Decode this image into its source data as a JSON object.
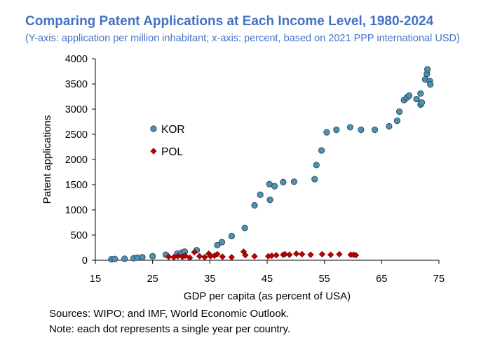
{
  "chart_data": {
    "type": "scatter",
    "title": "Comparing Patent Applications at Each Income Level, 1980-2024",
    "subtitle": "(Y-axis: application per million inhabitant; x-axis: percent, based on 2021 PPP international USD)",
    "xlabel": "GDP per capita (as percent of USA)",
    "ylabel": "Patent applications",
    "xlim": [
      15,
      75
    ],
    "ylim": [
      0,
      4000
    ],
    "xticks": [
      15,
      25,
      35,
      45,
      55,
      65,
      75
    ],
    "yticks": [
      0,
      500,
      1000,
      1500,
      2000,
      2500,
      3000,
      3500,
      4000
    ],
    "legend_position": "left",
    "series": [
      {
        "name": "KOR",
        "marker": "circle",
        "color": "#4f8fb0",
        "points": [
          [
            17.8,
            20
          ],
          [
            18.4,
            25
          ],
          [
            20.1,
            30
          ],
          [
            21.7,
            40
          ],
          [
            22.3,
            50
          ],
          [
            23.2,
            60
          ],
          [
            25,
            80
          ],
          [
            27.3,
            110
          ],
          [
            29.3,
            130
          ],
          [
            30.1,
            150
          ],
          [
            30.6,
            170
          ],
          [
            32.7,
            200
          ],
          [
            36.3,
            300
          ],
          [
            37.1,
            360
          ],
          [
            38.8,
            480
          ],
          [
            41.1,
            640
          ],
          [
            42.8,
            1090
          ],
          [
            43.8,
            1300
          ],
          [
            45.5,
            1200
          ],
          [
            45.4,
            1510
          ],
          [
            46.3,
            1470
          ],
          [
            47.8,
            1550
          ],
          [
            49.7,
            1560
          ],
          [
            53.3,
            1610
          ],
          [
            53.6,
            1890
          ],
          [
            54.5,
            2180
          ],
          [
            55.4,
            2540
          ],
          [
            57.1,
            2590
          ],
          [
            59.5,
            2640
          ],
          [
            61.4,
            2590
          ],
          [
            63.8,
            2590
          ],
          [
            66.3,
            2660
          ],
          [
            67.7,
            2770
          ],
          [
            68.1,
            2950
          ],
          [
            68.9,
            3180
          ],
          [
            69.4,
            3230
          ],
          [
            69.8,
            3270
          ],
          [
            71.1,
            3200
          ],
          [
            71.8,
            3090
          ],
          [
            72,
            3130
          ],
          [
            71.8,
            3310
          ],
          [
            72.6,
            3590
          ],
          [
            72.9,
            3700
          ],
          [
            73,
            3790
          ],
          [
            73.4,
            3560
          ],
          [
            73.5,
            3490
          ]
        ]
      },
      {
        "name": "POL",
        "marker": "diamond",
        "color": "#c00000",
        "points": [
          [
            27.8,
            70
          ],
          [
            28.7,
            60
          ],
          [
            29.4,
            80
          ],
          [
            30.2,
            70
          ],
          [
            30.7,
            90
          ],
          [
            31.5,
            50
          ],
          [
            32.3,
            160
          ],
          [
            33.2,
            80
          ],
          [
            34.1,
            60
          ],
          [
            34.8,
            130
          ],
          [
            35.1,
            80
          ],
          [
            35.8,
            90
          ],
          [
            36.3,
            120
          ],
          [
            37.2,
            70
          ],
          [
            38.8,
            60
          ],
          [
            40.9,
            170
          ],
          [
            41.2,
            100
          ],
          [
            42.8,
            80
          ],
          [
            45.2,
            80
          ],
          [
            45.8,
            90
          ],
          [
            46.6,
            100
          ],
          [
            47.8,
            110
          ],
          [
            48.1,
            120
          ],
          [
            48.9,
            110
          ],
          [
            50.1,
            130
          ],
          [
            51.1,
            120
          ],
          [
            52.6,
            110
          ],
          [
            54.6,
            120
          ],
          [
            56.1,
            110
          ],
          [
            57.6,
            120
          ],
          [
            59.6,
            110
          ],
          [
            60.1,
            110
          ],
          [
            60.5,
            100
          ]
        ]
      }
    ]
  },
  "footer": {
    "sources": "Sources: WIPO; and IMF, World Economic Outlook.",
    "note": "Note: each dot represents a single year per country."
  }
}
